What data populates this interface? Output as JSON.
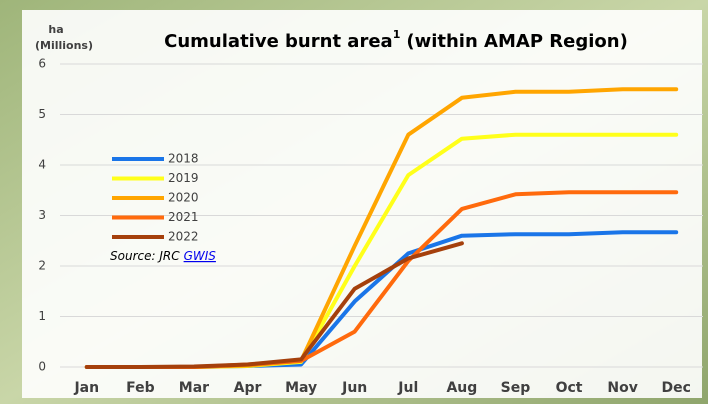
{
  "chart_data": {
    "type": "line",
    "title": "Cumulative burnt area",
    "title_superscript": "1",
    "title_suffix": "(within AMAP Region)",
    "y_label": "ha",
    "y_label_unit": "(Millions)",
    "source_text": "Source: JRC",
    "source_link": "GWIS",
    "categories": [
      "Jan",
      "Feb",
      "Mar",
      "Apr",
      "May",
      "Jun",
      "Jul",
      "Aug",
      "Sep",
      "Oct",
      "Nov",
      "Dec"
    ],
    "series": [
      {
        "name": "2018",
        "color": "#1a75e8",
        "values": [
          0,
          0,
          0,
          0.02,
          0.05,
          1.3,
          2.25,
          2.6,
          2.63,
          2.63,
          2.67,
          2.67
        ]
      },
      {
        "name": "2019",
        "color": "#ffff1a",
        "values": [
          0,
          0,
          0,
          0.02,
          0.1,
          2.0,
          3.8,
          4.52,
          4.6,
          4.6,
          4.6,
          4.6
        ]
      },
      {
        "name": "2020",
        "color": "#ffa500",
        "values": [
          0,
          0,
          0,
          0.03,
          0.12,
          2.4,
          4.6,
          5.33,
          5.45,
          5.45,
          5.5,
          5.5
        ]
      },
      {
        "name": "2021",
        "color": "#ff6a0d",
        "values": [
          0,
          0,
          0,
          0.05,
          0.12,
          0.7,
          2.1,
          3.13,
          3.42,
          3.46,
          3.46,
          3.46
        ]
      },
      {
        "name": "2022",
        "color": "#a5400c",
        "values": [
          0,
          0,
          0.01,
          0.05,
          0.15,
          1.55,
          2.15,
          2.45,
          null,
          null,
          null,
          null
        ]
      }
    ],
    "ylim": [
      0,
      6
    ],
    "yticks": [
      0,
      1,
      2,
      3,
      4,
      5,
      6
    ],
    "grid": true
  }
}
